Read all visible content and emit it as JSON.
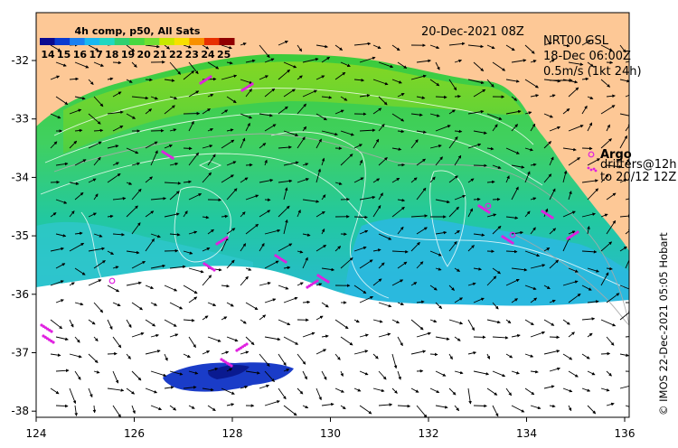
{
  "title_box": {
    "product": "4h comp, p50, All Sats",
    "date": "20-Dec-2021 08Z"
  },
  "colorbar": {
    "ticks": [
      "14",
      "15",
      "16",
      "17",
      "18",
      "19",
      "20",
      "21",
      "22",
      "23",
      "24",
      "25"
    ],
    "palette": [
      "#0a0a90",
      "#0a3ad0",
      "#1a80f0",
      "#18b8f0",
      "#20d8c0",
      "#30d070",
      "#48d840",
      "#70e030",
      "#c8e800",
      "#f8e000",
      "#f89000",
      "#e83000",
      "#900000"
    ]
  },
  "altimetry": {
    "product_line": "NRT00 GSL",
    "time_line": "18-Dec 06:00Z",
    "scale_line": "0.5m/s (1kt 24h)"
  },
  "legend": {
    "argo": "Argo",
    "drifters_line1": "drifters@12h",
    "drifters_line2": "to 20/12 12Z",
    "marker_color": "#e020e0"
  },
  "axes": {
    "x_ticks": [
      "124",
      "126",
      "128",
      "130",
      "132",
      "134",
      "136"
    ],
    "y_ticks": [
      "-32",
      "-33",
      "-34",
      "-35",
      "-36",
      "-37",
      "-38"
    ]
  },
  "credit": "© IMOS 22-Dec-2021 05:05 Hobart",
  "colors": {
    "land": "#fdc896",
    "no_data": "#ffffff",
    "frame": "#000000"
  }
}
